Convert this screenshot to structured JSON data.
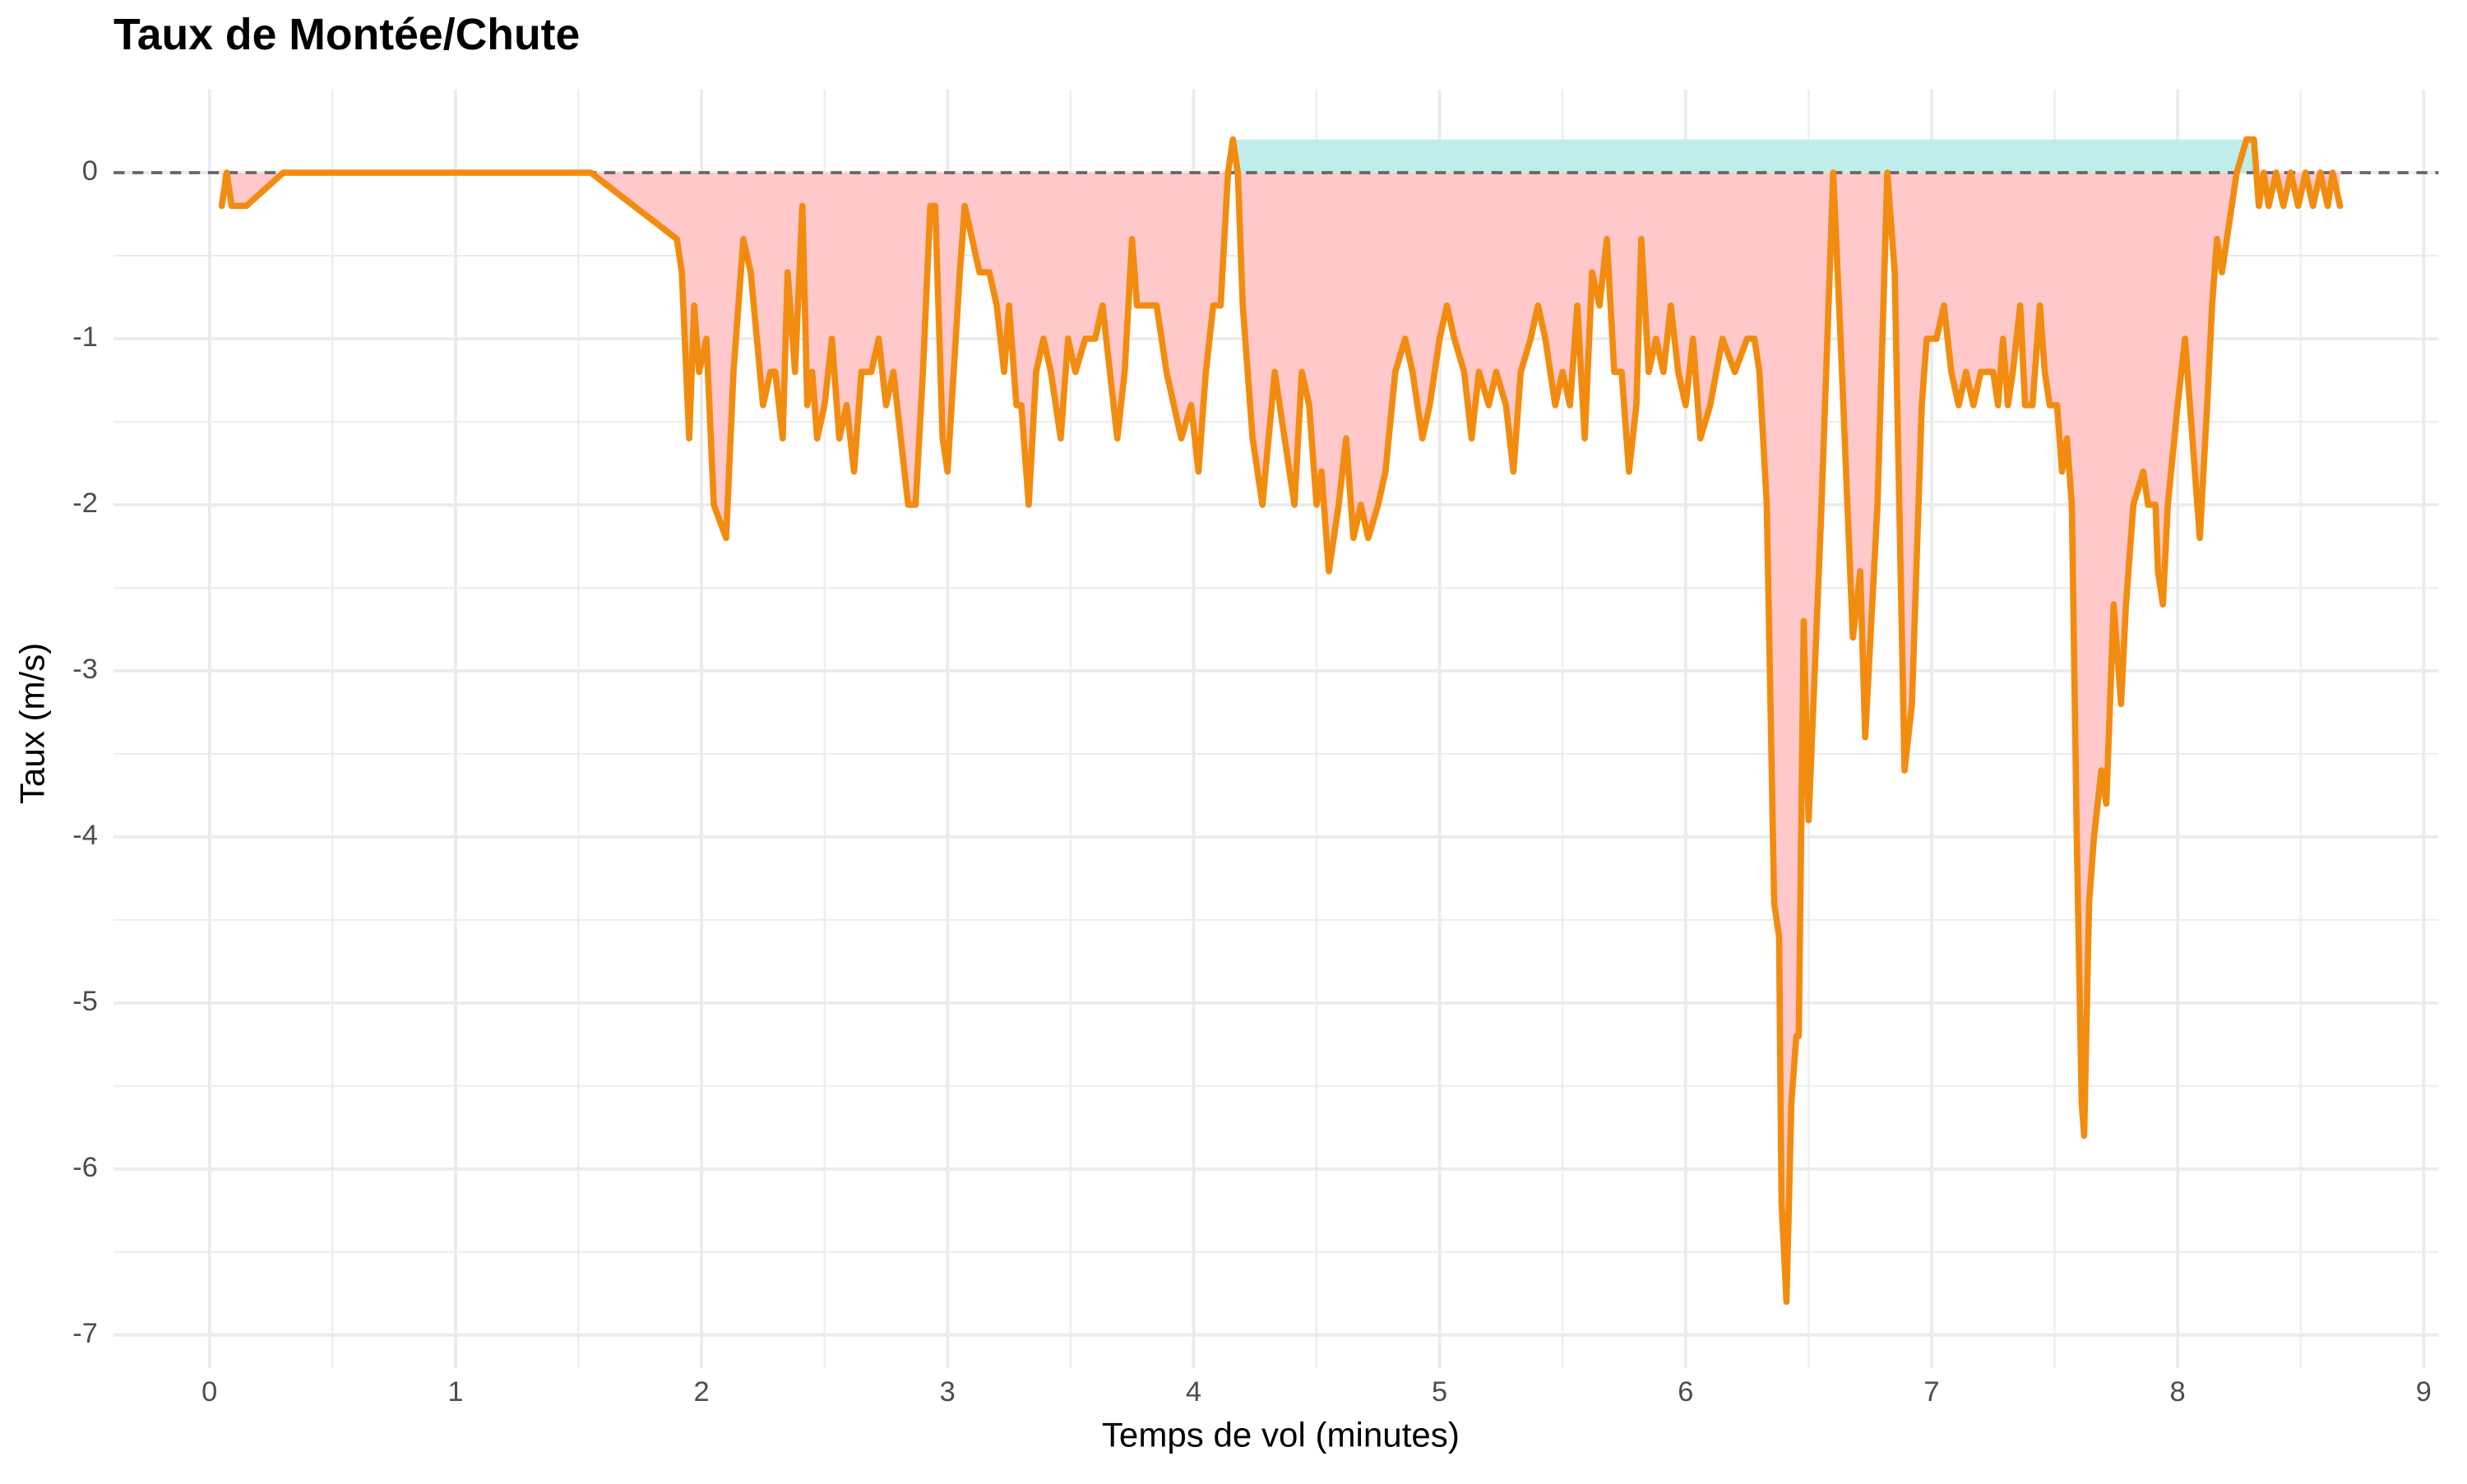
{
  "chart_data": {
    "type": "area-line",
    "title": "Taux de Montée/Chute",
    "x_label": "Temps de vol (minutes)",
    "y_label": "Taux (m/s)",
    "x": [
      0.05,
      0.07,
      0.09,
      0.15,
      0.3,
      1.55,
      1.9,
      1.92,
      1.95,
      1.97,
      1.99,
      2.02,
      2.05,
      2.1,
      2.13,
      2.17,
      2.2,
      2.25,
      2.28,
      2.3,
      2.33,
      2.35,
      2.38,
      2.41,
      2.43,
      2.45,
      2.47,
      2.5,
      2.53,
      2.56,
      2.59,
      2.62,
      2.65,
      2.69,
      2.72,
      2.75,
      2.78,
      2.81,
      2.84,
      2.87,
      2.9,
      2.93,
      2.95,
      2.98,
      3.0,
      3.05,
      3.07,
      3.1,
      3.13,
      3.17,
      3.2,
      3.23,
      3.25,
      3.28,
      3.3,
      3.33,
      3.36,
      3.39,
      3.42,
      3.46,
      3.49,
      3.52,
      3.56,
      3.6,
      3.63,
      3.66,
      3.69,
      3.72,
      3.75,
      3.77,
      3.85,
      3.89,
      3.92,
      3.95,
      3.99,
      4.02,
      4.05,
      4.08,
      4.11,
      4.14,
      4.16,
      4.18,
      4.2,
      4.24,
      4.28,
      4.33,
      4.37,
      4.41,
      4.44,
      4.47,
      4.5,
      4.52,
      4.55,
      4.59,
      4.62,
      4.65,
      4.68,
      4.71,
      4.75,
      4.78,
      4.82,
      4.86,
      4.89,
      4.93,
      4.96,
      5.0,
      5.03,
      5.06,
      5.1,
      5.13,
      5.16,
      5.2,
      5.23,
      5.27,
      5.3,
      5.33,
      5.37,
      5.4,
      5.43,
      5.47,
      5.5,
      5.53,
      5.56,
      5.59,
      5.62,
      5.65,
      5.68,
      5.71,
      5.74,
      5.77,
      5.8,
      5.82,
      5.85,
      5.88,
      5.91,
      5.94,
      5.97,
      6.0,
      6.03,
      6.06,
      6.1,
      6.15,
      6.2,
      6.25,
      6.28,
      6.3,
      6.33,
      6.36,
      6.38,
      6.39,
      6.41,
      6.43,
      6.45,
      6.46,
      6.48,
      6.5,
      6.55,
      6.6,
      6.63,
      6.68,
      6.71,
      6.73,
      6.78,
      6.82,
      6.85,
      6.89,
      6.92,
      6.96,
      6.98,
      7.02,
      7.05,
      7.08,
      7.11,
      7.14,
      7.17,
      7.2,
      7.25,
      7.27,
      7.29,
      7.31,
      7.33,
      7.36,
      7.38,
      7.41,
      7.44,
      7.46,
      7.48,
      7.51,
      7.53,
      7.55,
      7.57,
      7.59,
      7.61,
      7.62,
      7.64,
      7.66,
      7.69,
      7.71,
      7.74,
      7.77,
      7.79,
      7.82,
      7.86,
      7.88,
      7.91,
      7.92,
      7.94,
      7.96,
      8.0,
      8.03,
      8.06,
      8.09,
      8.12,
      8.14,
      8.16,
      8.18,
      8.2,
      8.24,
      8.28,
      8.31,
      8.33,
      8.35,
      8.37,
      8.4,
      8.43,
      8.46,
      8.49,
      8.52,
      8.55,
      8.58,
      8.61,
      8.63,
      8.66
    ],
    "values": [
      -0.2,
      0,
      -0.2,
      -0.2,
      0,
      0,
      -0.4,
      -0.6,
      -1.6,
      -0.8,
      -1.2,
      -1.0,
      -2.0,
      -2.2,
      -1.2,
      -0.4,
      -0.6,
      -1.4,
      -1.2,
      -1.2,
      -1.6,
      -0.6,
      -1.2,
      -0.2,
      -1.4,
      -1.2,
      -1.6,
      -1.4,
      -1.0,
      -1.6,
      -1.4,
      -1.8,
      -1.2,
      -1.2,
      -1.0,
      -1.4,
      -1.2,
      -1.6,
      -2.0,
      -2.0,
      -1.2,
      -0.2,
      -0.2,
      -1.6,
      -1.8,
      -0.6,
      -0.2,
      -0.4,
      -0.6,
      -0.6,
      -0.8,
      -1.2,
      -0.8,
      -1.4,
      -1.4,
      -2.0,
      -1.2,
      -1.0,
      -1.2,
      -1.6,
      -1.0,
      -1.2,
      -1.0,
      -1.0,
      -0.8,
      -1.2,
      -1.6,
      -1.2,
      -0.4,
      -0.8,
      -0.8,
      -1.2,
      -1.4,
      -1.6,
      -1.4,
      -1.8,
      -1.2,
      -0.8,
      -0.8,
      0,
      0.2,
      0,
      -0.8,
      -1.6,
      -2.0,
      -1.2,
      -1.6,
      -2.0,
      -1.2,
      -1.4,
      -2.0,
      -1.8,
      -2.4,
      -2.0,
      -1.6,
      -2.2,
      -2.0,
      -2.2,
      -2.0,
      -1.8,
      -1.2,
      -1.0,
      -1.2,
      -1.6,
      -1.4,
      -1.0,
      -0.8,
      -1.0,
      -1.2,
      -1.6,
      -1.2,
      -1.4,
      -1.2,
      -1.4,
      -1.8,
      -1.2,
      -1.0,
      -0.8,
      -1.0,
      -1.4,
      -1.2,
      -1.4,
      -0.8,
      -1.6,
      -0.6,
      -0.8,
      -0.4,
      -1.2,
      -1.2,
      -1.8,
      -1.4,
      -0.4,
      -1.2,
      -1.0,
      -1.2,
      -0.8,
      -1.2,
      -1.4,
      -1.0,
      -1.6,
      -1.4,
      -1.0,
      -1.2,
      -1.0,
      -1.0,
      -1.2,
      -2.0,
      -4.4,
      -4.6,
      -6.2,
      -6.8,
      -5.6,
      -5.2,
      -5.2,
      -2.7,
      -3.9,
      -2.1,
      0,
      -1.0,
      -2.8,
      -2.4,
      -3.4,
      -2.0,
      0,
      -0.6,
      -3.6,
      -3.2,
      -1.4,
      -1.0,
      -1.0,
      -0.8,
      -1.2,
      -1.4,
      -1.2,
      -1.4,
      -1.2,
      -1.2,
      -1.4,
      -1.0,
      -1.4,
      -1.2,
      -0.8,
      -1.4,
      -1.4,
      -0.8,
      -1.2,
      -1.4,
      -1.4,
      -1.8,
      -1.6,
      -2.0,
      -4.0,
      -5.6,
      -5.8,
      -4.4,
      -4.0,
      -3.6,
      -3.8,
      -2.6,
      -3.2,
      -2.6,
      -2.0,
      -1.8,
      -2.0,
      -2.0,
      -2.4,
      -2.6,
      -2.0,
      -1.4,
      -1.0,
      -1.6,
      -2.2,
      -1.4,
      -0.8,
      -0.4,
      -0.6,
      -0.4,
      0,
      0.2,
      0.2,
      -0.2,
      0,
      -0.2,
      0,
      -0.2,
      0,
      -0.2,
      0,
      -0.2,
      0,
      -0.2,
      0,
      -0.2
    ],
    "line_color": "#f28c10",
    "fill_negative": "#ffc9cb",
    "fill_positive": "#bfeeea",
    "reference_line": 0,
    "xlim": [
      -0.39,
      9.06
    ],
    "ylim": [
      -7.2,
      0.5
    ],
    "xticks": [
      0,
      1,
      2,
      3,
      4,
      5,
      6,
      7,
      8,
      9
    ],
    "yticks": [
      0,
      -1,
      -2,
      -3,
      -4,
      -5,
      -6,
      -7
    ],
    "grid": true
  }
}
